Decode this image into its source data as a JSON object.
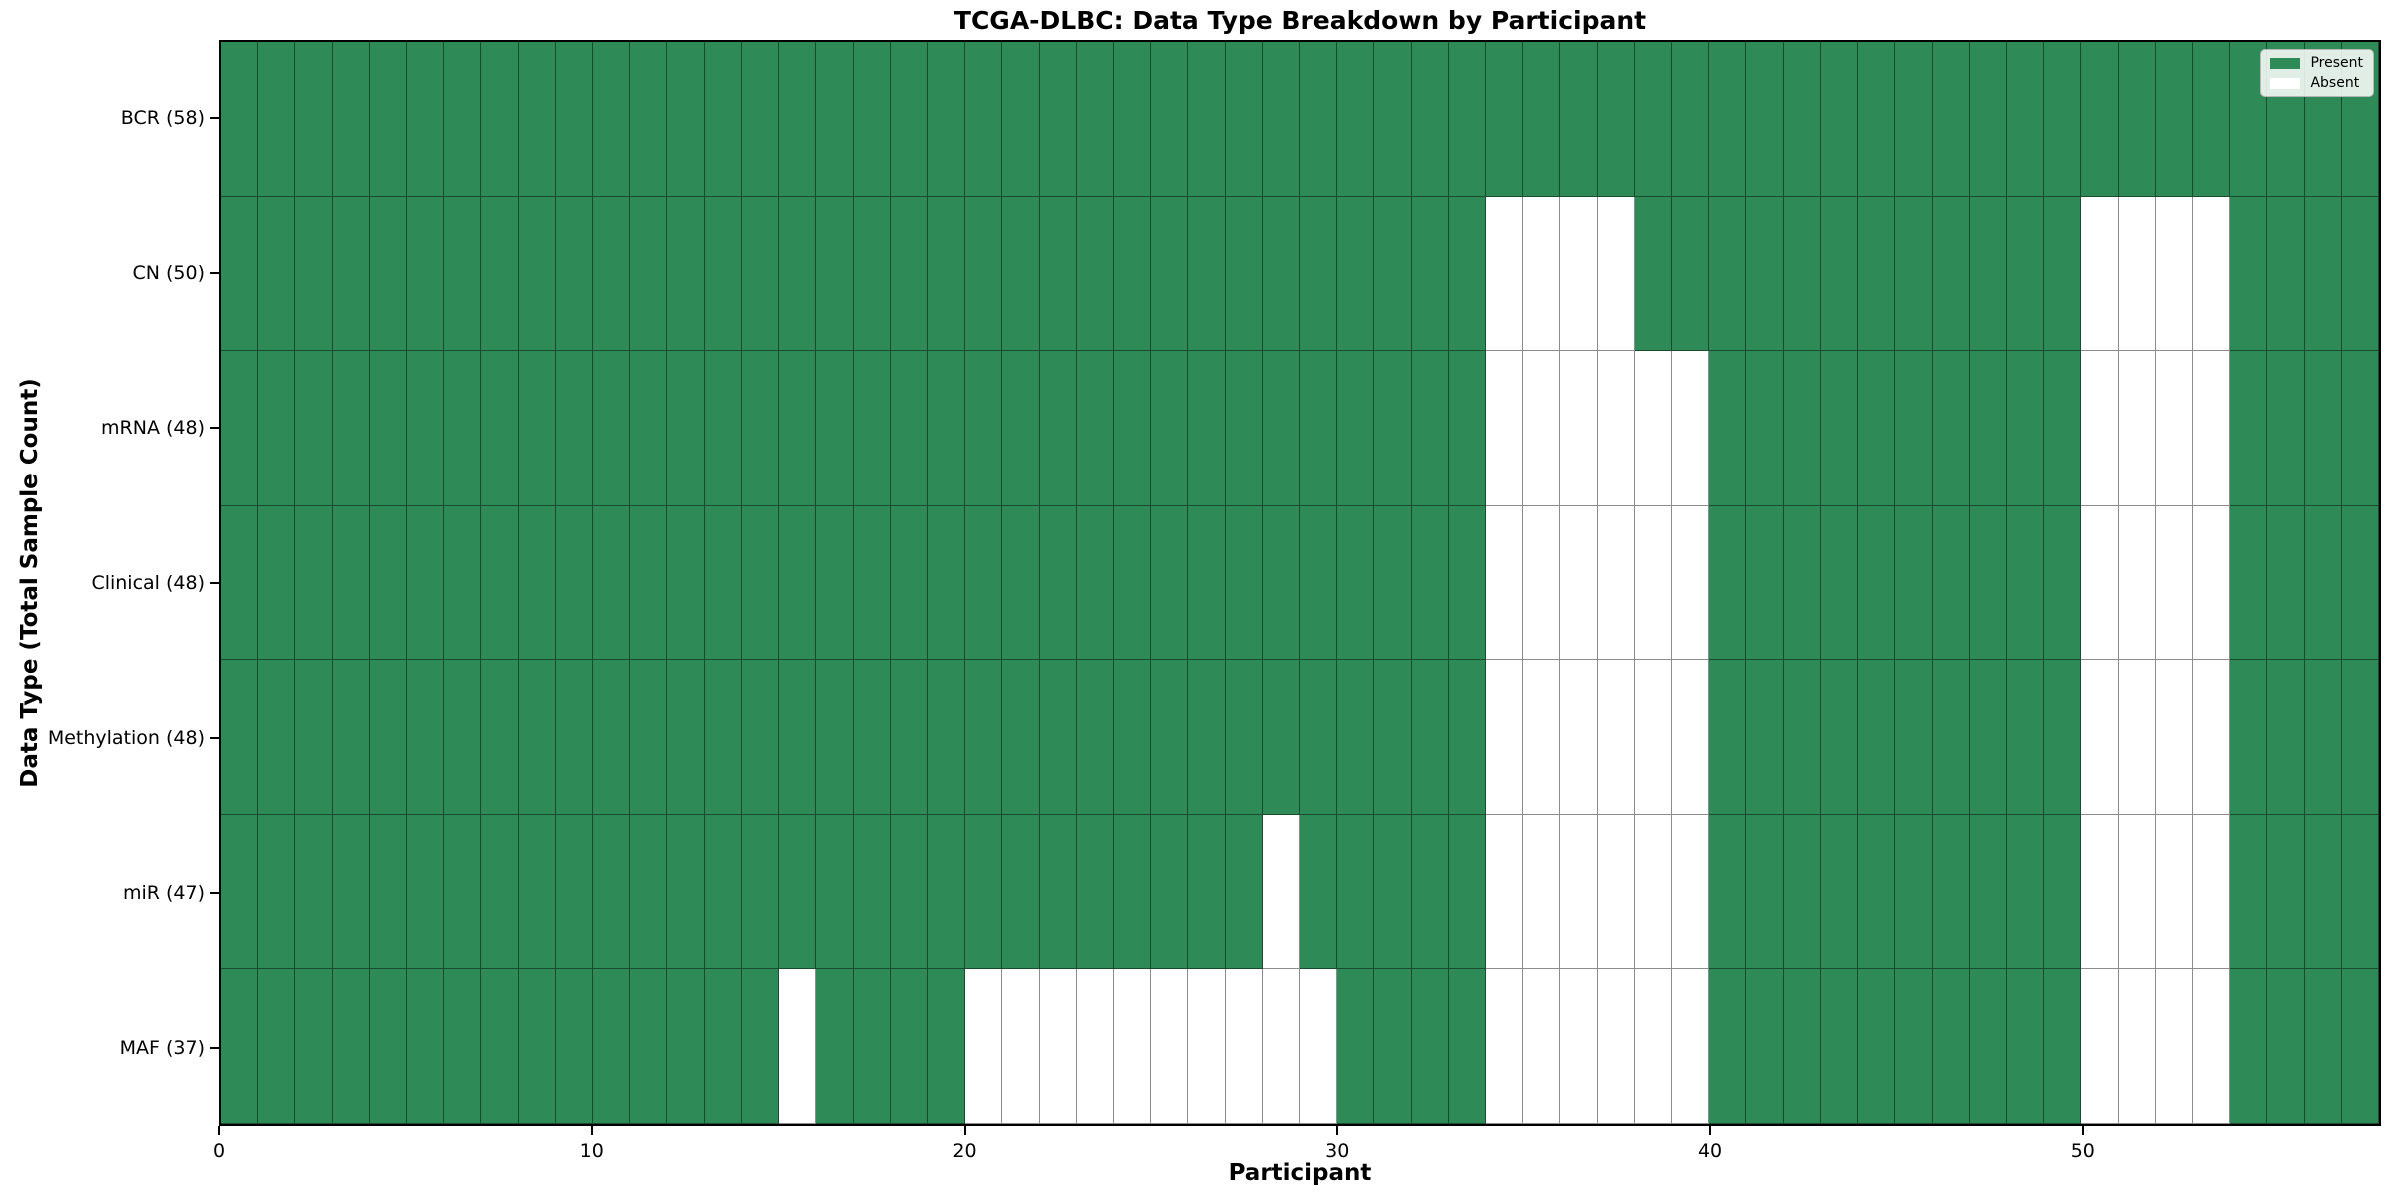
{
  "title": "TCGA-DLBC: Data Type Breakdown by Participant",
  "axes": {
    "x_label": "Participant",
    "y_label": "Data Type (Total Sample Count)"
  },
  "legend": {
    "items": [
      {
        "label": "Present",
        "color": "#2e8b57"
      },
      {
        "label": "Absent",
        "color": "#ffffff"
      }
    ]
  },
  "colors": {
    "present": "#2e8b57",
    "absent": "#ffffff",
    "gridline": "rgba(0,0,0,0.45)",
    "axis_border": "#000000"
  },
  "chart_data": {
    "type": "heatmap",
    "title": "TCGA-DLBC: Data Type Breakdown by Participant",
    "xlabel": "Participant",
    "ylabel": "Data Type (Total Sample Count)",
    "n_participants": 58,
    "x_range": [
      0,
      58
    ],
    "x_ticks": [
      0,
      10,
      20,
      30,
      40,
      50
    ],
    "legend_entries": [
      "Present",
      "Absent"
    ],
    "legend_position": "upper right",
    "grid": true,
    "rows": [
      {
        "label": "BCR (58)",
        "data_type": "BCR",
        "total_present": 58,
        "absent_participants": []
      },
      {
        "label": "CN (50)",
        "data_type": "CN",
        "total_present": 50,
        "absent_participants": [
          34,
          35,
          36,
          37,
          50,
          51,
          52,
          53
        ]
      },
      {
        "label": "mRNA (48)",
        "data_type": "mRNA",
        "total_present": 48,
        "absent_participants": [
          34,
          35,
          36,
          37,
          38,
          39,
          50,
          51,
          52,
          53
        ]
      },
      {
        "label": "Clinical (48)",
        "data_type": "Clinical",
        "total_present": 48,
        "absent_participants": [
          34,
          35,
          36,
          37,
          38,
          39,
          50,
          51,
          52,
          53
        ]
      },
      {
        "label": "Methylation (48)",
        "data_type": "Methylation",
        "total_present": 48,
        "absent_participants": [
          34,
          35,
          36,
          37,
          38,
          39,
          50,
          51,
          52,
          53
        ]
      },
      {
        "label": "miR (47)",
        "data_type": "miR",
        "total_present": 47,
        "absent_participants": [
          28,
          34,
          35,
          36,
          37,
          38,
          39,
          50,
          51,
          52,
          53
        ]
      },
      {
        "label": "MAF (37)",
        "data_type": "MAF",
        "total_present": 37,
        "absent_participants": [
          15,
          20,
          21,
          22,
          23,
          24,
          25,
          26,
          27,
          28,
          29,
          34,
          35,
          36,
          37,
          38,
          39,
          50,
          51,
          52,
          53
        ]
      }
    ]
  }
}
